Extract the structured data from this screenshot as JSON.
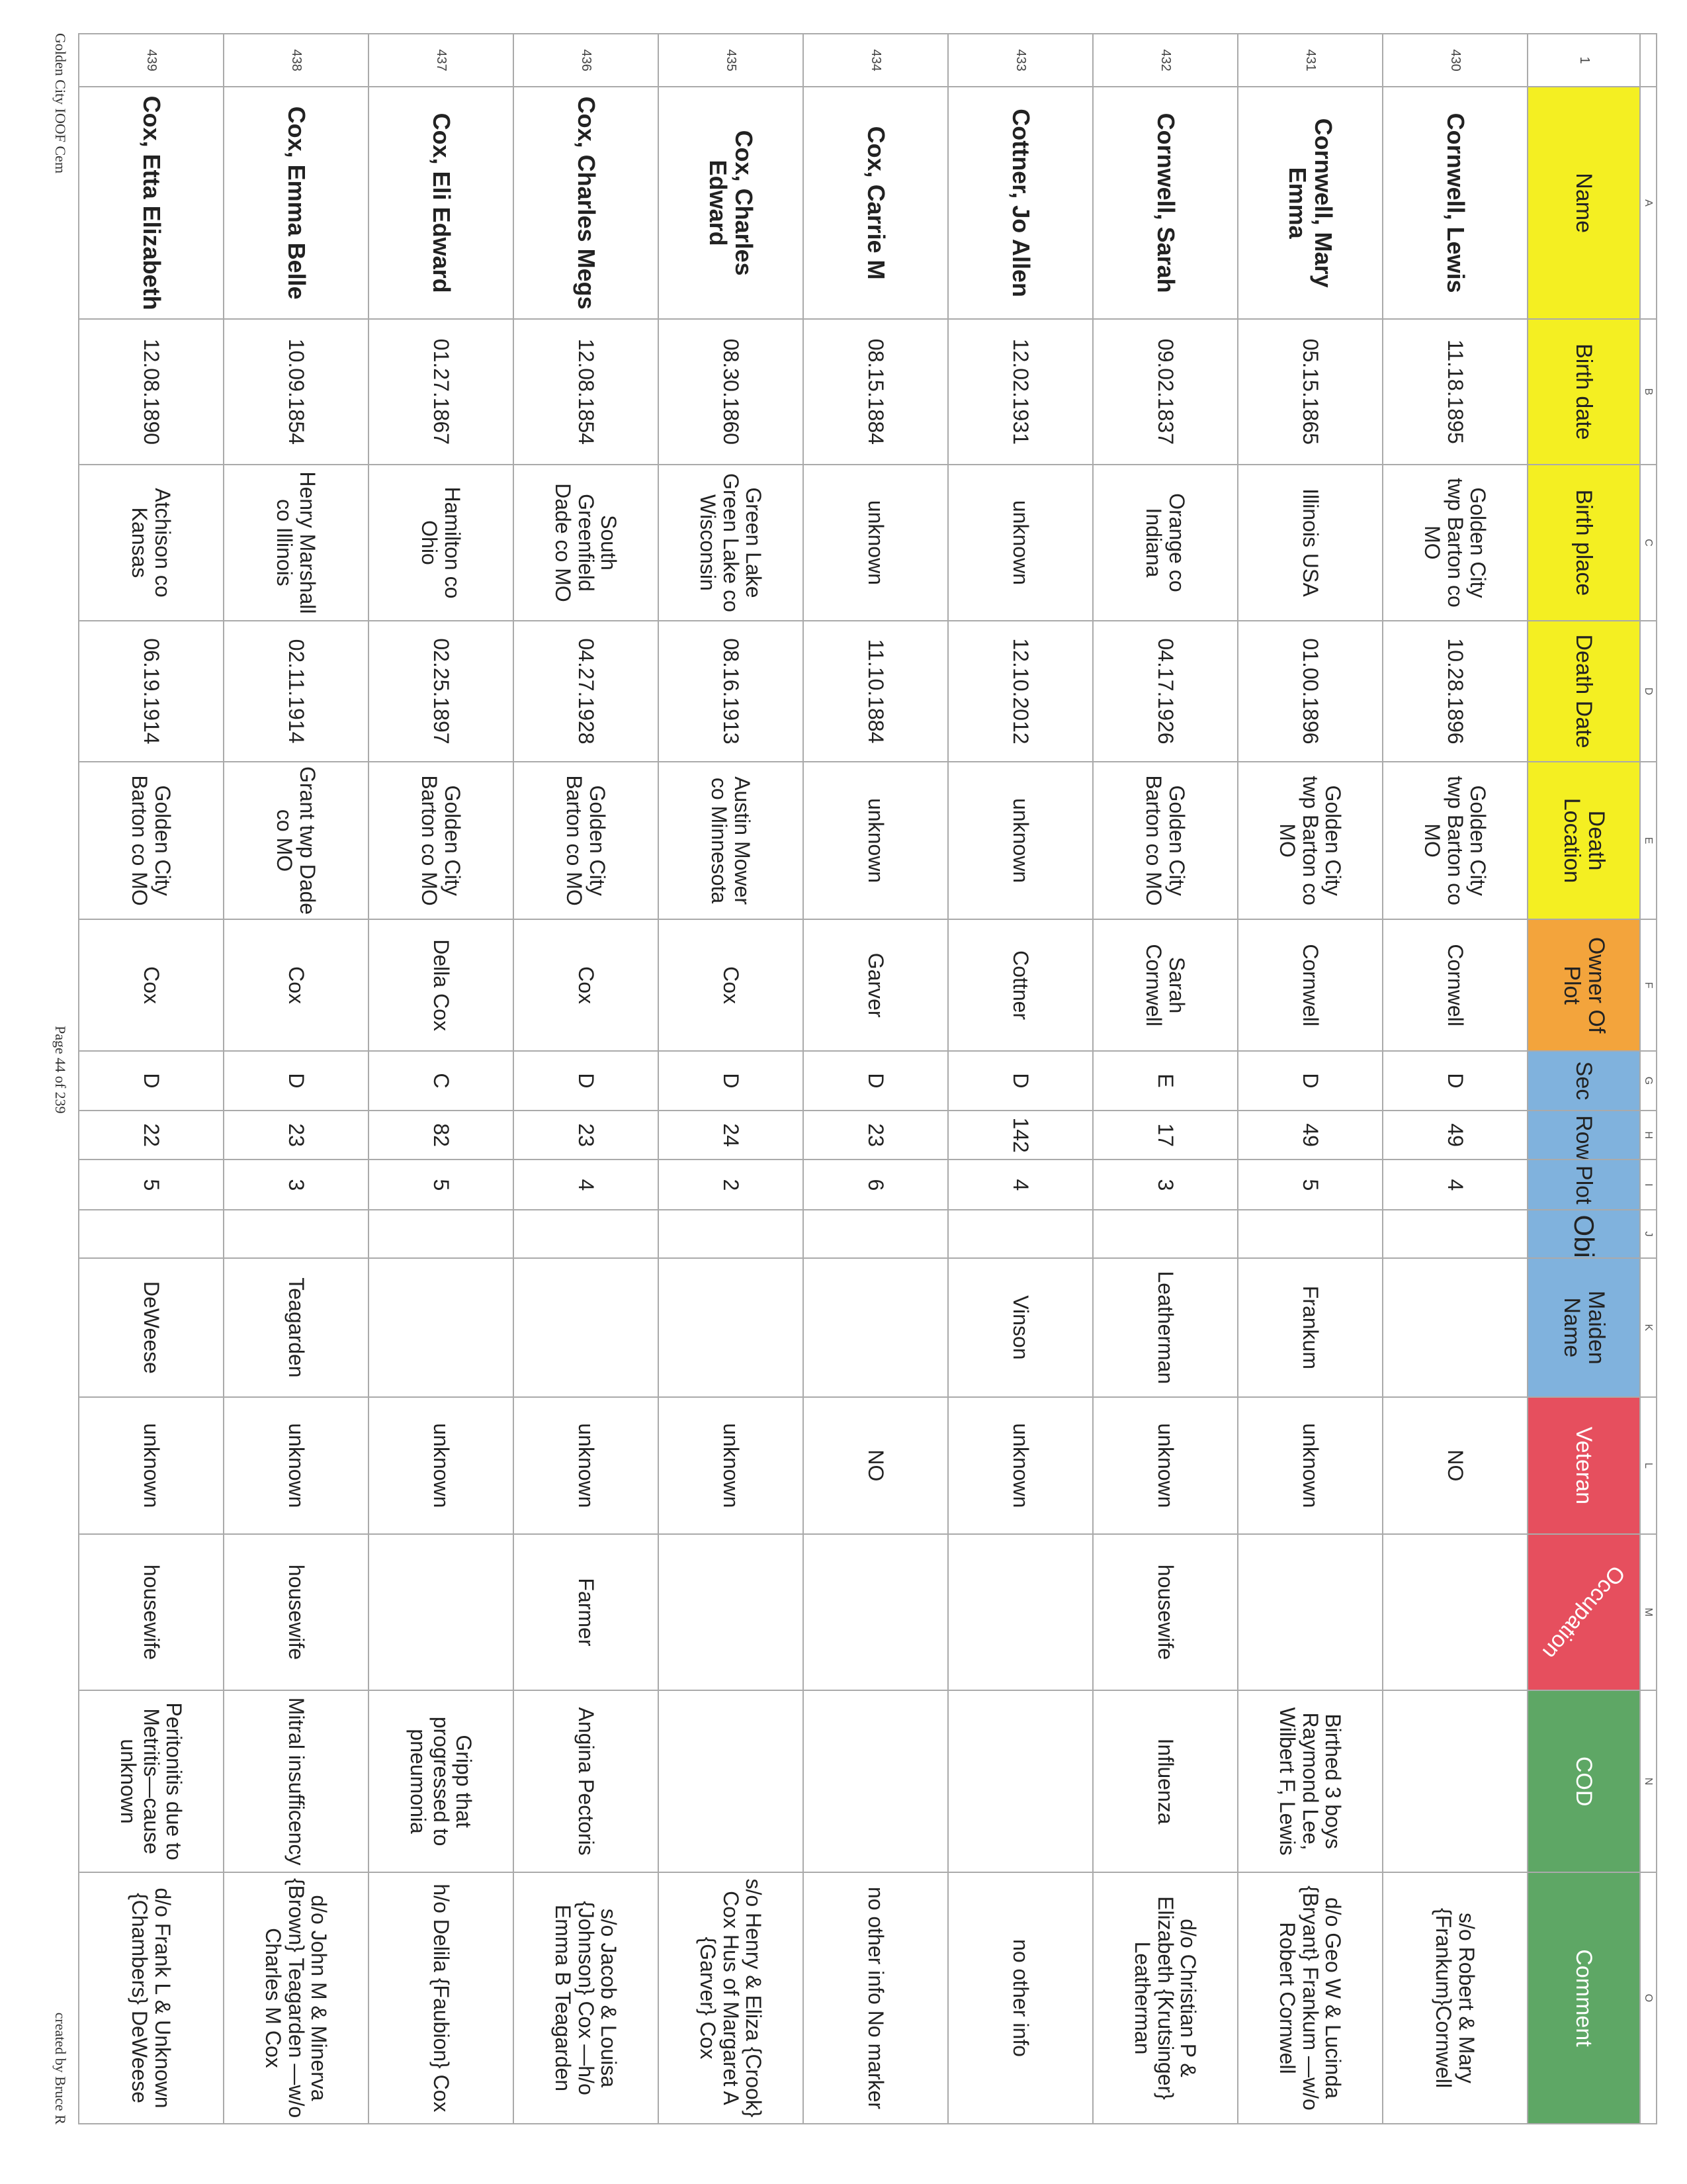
{
  "column_letters": [
    "A",
    "B",
    "C",
    "D",
    "E",
    "F",
    "G",
    "H",
    "I",
    "J",
    "K",
    "L",
    "M",
    "N",
    "O"
  ],
  "header_row_number": "1",
  "headers": [
    "Name",
    "Birth date",
    "Birth place",
    "Death Date",
    "Death Location",
    "Owner Of Plot",
    "Sec",
    "Row",
    "Plot",
    "Obit",
    "Maiden Name",
    "Veteran",
    "Occupation",
    "COD",
    "Comment"
  ],
  "header_colors": {
    "yellow": "#f4ef22",
    "orange": "#f3a43c",
    "blue": "#80b2dd",
    "red": "#e64f5e",
    "green": "#5ea765"
  },
  "rows": [
    {
      "num": "430",
      "cells": [
        "Cornwell, Lewis",
        "11.18.1895",
        "Golden City twp Barton co MO",
        "10.28.1896",
        "Golden City twp Barton co MO",
        "Cornwell",
        "D",
        "49",
        "4",
        "",
        "",
        "NO",
        "",
        "",
        "s/o Robert & Mary {Frankum}Cornwell"
      ]
    },
    {
      "num": "431",
      "cells": [
        "Cornwell, Mary Emma",
        "05.15.1865",
        "Illinois USA",
        "01.00.1896",
        "Golden City twp Barton co MO",
        "Cornwell",
        "D",
        "49",
        "5",
        "",
        "Frankum",
        "unknown",
        "",
        "Birthed 3 boys Raymond Lee, Wilbert F, Lewis",
        "d/o Geo W & Lucinda {Bryant} Frankum —w/o Robert Cornwell"
      ]
    },
    {
      "num": "432",
      "cells": [
        "Cornwell, Sarah",
        "09.02.1837",
        "Orange co Indiana",
        "04.17.1926",
        "Golden City Barton co MO",
        "Sarah Cornwell",
        "E",
        "17",
        "3",
        "",
        "Leatherman",
        "unknown",
        "housewife",
        "Influenza",
        "d/o Christian P & Elizabeth {Krutsinger} Leatherman"
      ]
    },
    {
      "num": "433",
      "cells": [
        "Cottner, Jo Allen",
        "12.02.1931",
        "unknown",
        "12.10.2012",
        "unknown",
        "Cottner",
        "D",
        "142",
        "4",
        "",
        "Vinson",
        "unknown",
        "",
        "",
        "no other info"
      ]
    },
    {
      "num": "434",
      "cells": [
        "Cox, Carrie M",
        "08.15.1884",
        "unknown",
        "11.10.1884",
        "unknown",
        "Garver",
        "D",
        "23",
        "6",
        "",
        "",
        "NO",
        "",
        "",
        "no other info No marker"
      ]
    },
    {
      "num": "435",
      "cells": [
        "Cox, Charles Edward",
        "08.30.1860",
        "Green Lake Green Lake co Wisconsin",
        "08.16.1913",
        "Austin Mower co Minnesota",
        "Cox",
        "D",
        "24",
        "2",
        "",
        "",
        "unknown",
        "",
        "",
        "s/o Henry & Eliza {Crook} Cox Hus of Margaret A {Garver} Cox"
      ]
    },
    {
      "num": "436",
      "cells": [
        "Cox, Charles Megs",
        "12.08.1854",
        "South Greenfield Dade co MO",
        "04.27.1928",
        "Golden City Barton co MO",
        "Cox",
        "D",
        "23",
        "4",
        "",
        "",
        "unknown",
        "Farmer",
        "Angina Pectoris",
        "s/o Jacob & Louisa {Johnson} Cox —h/o Emma B Teagarden"
      ]
    },
    {
      "num": "437",
      "cells": [
        "Cox, Eli Edward",
        "01.27.1867",
        "Hamilton co Ohio",
        "02.25.1897",
        "Golden City Barton co MO",
        "Della Cox",
        "C",
        "82",
        "5",
        "",
        "",
        "unknown",
        "",
        "Gripp that progressed to pneumonia",
        "h/o Delila {Faubion} Cox"
      ]
    },
    {
      "num": "438",
      "cells": [
        "Cox, Emma Belle",
        "10.09.1854",
        "Henry Marshall co Illinois",
        "02.11.1914",
        "Grant twp Dade co MO",
        "Cox",
        "D",
        "23",
        "3",
        "",
        "Teagarden",
        "unknown",
        "housewife",
        "Mitral insufficency",
        "d/o John M & Minerva {Brown} Teagarden —w/o Charles M Cox"
      ]
    },
    {
      "num": "439",
      "cells": [
        "Cox, Etta Elizabeth",
        "12.08.1890",
        "Atchison co Kansas",
        "06.19.1914",
        "Golden City Barton co MO",
        "Cox",
        "D",
        "22",
        "5",
        "",
        "DeWeese",
        "unknown",
        "housewife",
        "Peritonitis due to Metritis—cause unknown",
        "d/o Frank L & Unknown {Chambers} DeWeese"
      ]
    }
  ],
  "footer": {
    "left": "Golden City IOOF Cem",
    "center": "Page 44 of 239",
    "right": "created by Bruce R"
  }
}
